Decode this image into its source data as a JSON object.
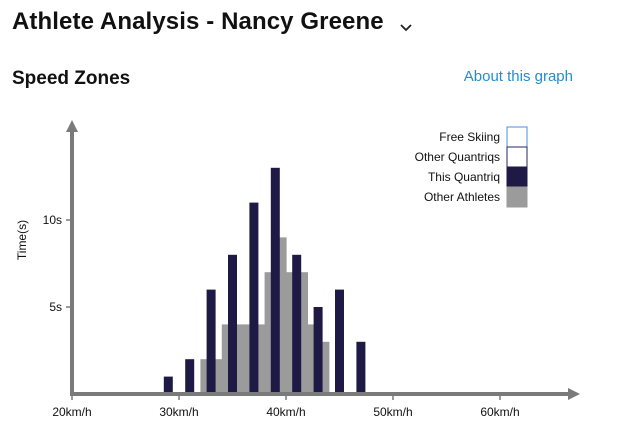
{
  "header": {
    "title": "Athlete Analysis - Nancy Greene"
  },
  "section": {
    "title": "Speed Zones",
    "about_link": "About this graph"
  },
  "chart_data": {
    "type": "bar",
    "ylabel": "Time(s)",
    "xlim": [
      20,
      70
    ],
    "ylim": [
      0,
      14.5
    ],
    "x_ticks": [
      {
        "value": 20,
        "label": "20km/h"
      },
      {
        "value": 30,
        "label": "30km/h"
      },
      {
        "value": 40,
        "label": "40km/h"
      },
      {
        "value": 50,
        "label": "50km/h"
      },
      {
        "value": 60,
        "label": "60km/h"
      }
    ],
    "y_ticks": [
      {
        "value": 5,
        "label": "5s"
      },
      {
        "value": 10,
        "label": "10s"
      }
    ],
    "legend": [
      {
        "name": "Free Skiing",
        "fill": "#ffffff",
        "stroke": "#4a90d9"
      },
      {
        "name": "Other Quantriqs",
        "fill": "#ffffff",
        "stroke": "#2a2563"
      },
      {
        "name": "This Quantriq",
        "fill": "#1f1a45",
        "stroke": "#1f1a45"
      },
      {
        "name": "Other Athletes",
        "fill": "#9b9b9b",
        "stroke": "#9b9b9b"
      }
    ],
    "series": [
      {
        "name": "Other Athletes",
        "style": "area-steps",
        "color": "#9b9b9b",
        "x": [
          32,
          33,
          34,
          35,
          36,
          37,
          38,
          39,
          40,
          41,
          42,
          43,
          44
        ],
        "values": [
          2,
          2,
          4,
          4,
          4,
          4,
          7,
          9,
          7,
          7,
          4,
          3,
          0
        ]
      },
      {
        "name": "This Quantriq",
        "style": "bars",
        "color": "#1f1a45",
        "x": [
          29,
          31,
          33,
          35,
          37,
          39,
          41,
          43,
          45,
          47
        ],
        "values": [
          1,
          2,
          6,
          8,
          11,
          13,
          8,
          5,
          6,
          3
        ]
      }
    ]
  }
}
